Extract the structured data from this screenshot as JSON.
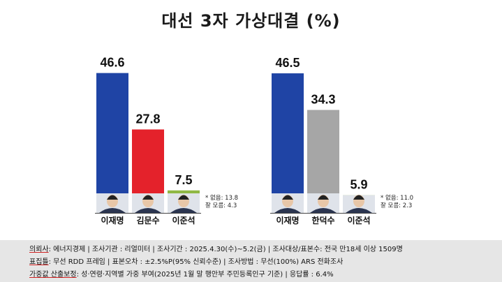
{
  "title": "대선 3자 가상대결 (%)",
  "chart_data": [
    {
      "type": "bar",
      "categories": [
        "이재명",
        "김문수",
        "이준석"
      ],
      "values": [
        46.6,
        27.8,
        7.5
      ],
      "value_labels": [
        "46.6",
        "27.8",
        "7.5"
      ],
      "colors": [
        "#1f44a5",
        "#e4222b",
        "#8fb844"
      ],
      "note_lines": [
        "* 없음: 13.8",
        "잘 모름: 4.3"
      ],
      "ylim": [
        0,
        50
      ]
    },
    {
      "type": "bar",
      "categories": [
        "이재명",
        "한덕수",
        "이준석"
      ],
      "values": [
        46.5,
        34.3,
        5.9
      ],
      "value_labels": [
        "46.5",
        "34.3",
        "5.9"
      ],
      "colors": [
        "#1f44a5",
        "#a6a6a6",
        "#8fb844"
      ],
      "note_lines": [
        "* 없음: 11.0",
        "잘 모름: 2.3"
      ],
      "ylim": [
        0,
        50
      ]
    }
  ],
  "footer": {
    "line1_key": "의뢰사",
    "line1_rest": ": 에너지경제 | 조사기관 : 리얼미터 | 조사기간 : 2025.4.30(수)~5.2(금) | 조사대상/표본수: 전국 만18세 이상 1509명",
    "line2_key": "표집틀",
    "line2_rest": ": 무선 RDD 프레임 | 표본오차 : ±2.5%P(95% 신뢰수준) | 조사방법 : 무선(100%) ARS 전화조사",
    "line3_key": "가중값 산출보정",
    "line3_rest": ": 성·연령·지역별 가중 부여(2025년 1월 말 행안부 주민등록인구 기준) | 응답률 : 6.4%"
  }
}
